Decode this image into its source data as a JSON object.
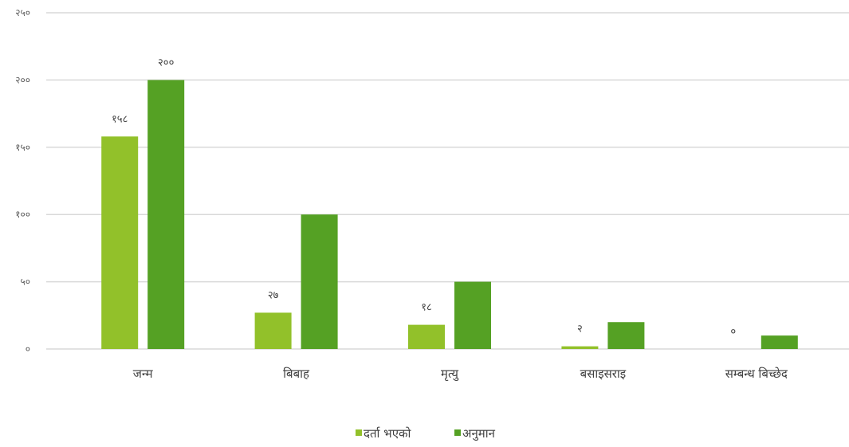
{
  "chart_data": {
    "type": "bar",
    "categories": [
      "जन्म",
      "बिबाह",
      "मृत्यु",
      "बसाइसराइ",
      "सम्बन्ध बिच्छेद"
    ],
    "series": [
      {
        "name": "दर्ता भएको",
        "values": [
          158,
          27,
          18,
          2,
          0
        ],
        "labels": [
          "१५८",
          "२७",
          "१८",
          "२",
          "०"
        ],
        "color": "#92c12a"
      },
      {
        "name": "अनुमान",
        "values": [
          200,
          100,
          50,
          20,
          10
        ],
        "labels": [
          "२००",
          "",
          "",
          "",
          ""
        ],
        "color": "#55a124"
      }
    ],
    "ylim": [
      0,
      250
    ],
    "yticks": [
      0,
      50,
      100,
      150,
      200,
      250
    ],
    "ytick_labels": [
      "०",
      "५०",
      "१००",
      "१५०",
      "२००",
      "२५०"
    ],
    "grid": true,
    "legend_position": "bottom",
    "gridline_color": "#d9d9d9"
  }
}
